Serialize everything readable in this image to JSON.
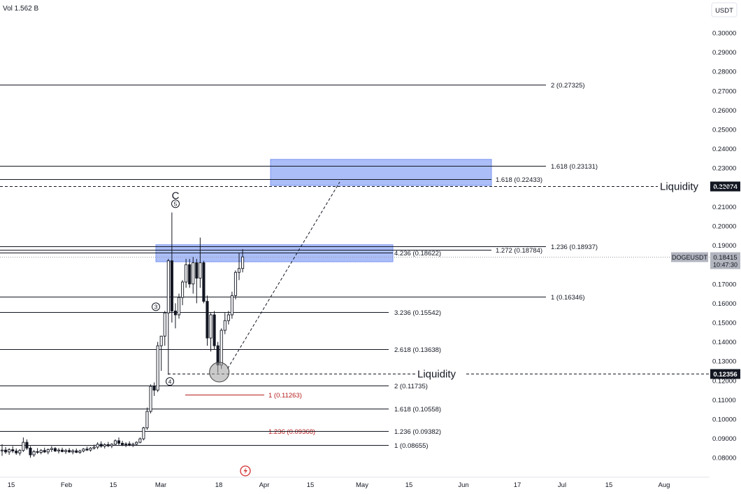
{
  "chart_data": {
    "type": "candlestick",
    "symbol": "DOGEUSDT",
    "volume_label": "Vol 1.562 B",
    "currency_label": "USDT",
    "x_ticks": [
      "15",
      "Feb",
      "15",
      "Mar",
      "18",
      "Apr",
      "15",
      "May",
      "15",
      "Jun",
      "17",
      "Jul",
      "15",
      "Aug"
    ],
    "y_ticks": [
      "0.30000",
      "0.29000",
      "0.28000",
      "0.27000",
      "0.26000",
      "0.25000",
      "0.24000",
      "0.23000",
      "0.22000",
      "0.21000",
      "0.20000",
      "0.19000",
      "0.18000",
      "0.17000",
      "0.16000",
      "0.15000",
      "0.14000",
      "0.13000",
      "0.12000",
      "0.11000",
      "0.10000",
      "0.09000",
      "0.08000"
    ],
    "ylim": [
      0.075,
      0.305
    ],
    "price_tag": {
      "label": "DOGEUSDT",
      "value": "0.18415",
      "countdown": "10:47:30",
      "price": 0.18415
    },
    "liquidity_levels": [
      {
        "label": "Liquidity",
        "value": "0.22074",
        "price": 0.22074
      },
      {
        "label": "Liquidity",
        "value": "0.12356",
        "price": 0.12356
      }
    ],
    "fib_levels": [
      {
        "text": "2 (0.27325)",
        "price": 0.27325
      },
      {
        "text": "1.618 (0.23131)",
        "price": 0.23131
      },
      {
        "text": "1.618 (0.22433)",
        "price": 0.22433
      },
      {
        "text": "1.236 (0.18937)",
        "price": 0.18937
      },
      {
        "text": "1.272 (0.18784)",
        "price": 0.18784
      },
      {
        "text": "4.236 (0.18622)",
        "price": 0.18622
      },
      {
        "text": "1 (0.16346)",
        "price": 0.16346
      },
      {
        "text": "3.236 (0.15542)",
        "price": 0.15542
      },
      {
        "text": "2.618 (0.13638)",
        "price": 0.13638
      },
      {
        "text": "2 (0.11735)",
        "price": 0.11735
      },
      {
        "text": "1 (0.11263)",
        "price": 0.11263,
        "color": "#b71c1c"
      },
      {
        "text": "1.618 (0.10558)",
        "price": 0.10558
      },
      {
        "text": "1.236 (0.09368)",
        "price": 0.09368,
        "color": "#b71c1c"
      },
      {
        "text": "1.236 (0.09382)",
        "price": 0.09382
      },
      {
        "text": "1 (0.08655)",
        "price": 0.08655
      }
    ],
    "zones": [
      {
        "low": 0.221,
        "high": 0.2345,
        "color": "#8fa8f5"
      },
      {
        "low": 0.1815,
        "high": 0.1903,
        "color": "#8fa8f5"
      }
    ],
    "wave_labels": [
      "C",
      "5",
      "3",
      "4"
    ],
    "candles": [
      [
        0.0835,
        0.087,
        0.081,
        0.084
      ],
      [
        0.084,
        0.0855,
        0.082,
        0.083
      ],
      [
        0.083,
        0.085,
        0.0815,
        0.0842
      ],
      [
        0.0842,
        0.086,
        0.0825,
        0.0835
      ],
      [
        0.0835,
        0.0848,
        0.0815,
        0.0825
      ],
      [
        0.0825,
        0.0845,
        0.0812,
        0.0838
      ],
      [
        0.0838,
        0.0905,
        0.083,
        0.088
      ],
      [
        0.088,
        0.0895,
        0.084,
        0.085
      ],
      [
        0.085,
        0.086,
        0.08,
        0.0815
      ],
      [
        0.0815,
        0.084,
        0.0805,
        0.0832
      ],
      [
        0.0832,
        0.085,
        0.082,
        0.0828
      ],
      [
        0.0828,
        0.0845,
        0.0818,
        0.0838
      ],
      [
        0.0838,
        0.0852,
        0.0825,
        0.083
      ],
      [
        0.083,
        0.0848,
        0.0818,
        0.0842
      ],
      [
        0.0842,
        0.086,
        0.083,
        0.0848
      ],
      [
        0.0848,
        0.0855,
        0.083,
        0.0835
      ],
      [
        0.0835,
        0.085,
        0.0822,
        0.084
      ],
      [
        0.084,
        0.0852,
        0.0828,
        0.0832
      ],
      [
        0.0832,
        0.0846,
        0.082,
        0.0838
      ],
      [
        0.0838,
        0.085,
        0.0826,
        0.083
      ],
      [
        0.083,
        0.0845,
        0.0818,
        0.0836
      ],
      [
        0.0836,
        0.0848,
        0.0824,
        0.0828
      ],
      [
        0.0828,
        0.0842,
        0.082,
        0.0835
      ],
      [
        0.0835,
        0.085,
        0.0828,
        0.0845
      ],
      [
        0.0845,
        0.0858,
        0.0835,
        0.084
      ],
      [
        0.084,
        0.0855,
        0.0832,
        0.085
      ],
      [
        0.085,
        0.0868,
        0.0842,
        0.0855
      ],
      [
        0.0855,
        0.088,
        0.0845,
        0.087
      ],
      [
        0.087,
        0.0885,
        0.0852,
        0.086
      ],
      [
        0.086,
        0.0875,
        0.0848,
        0.0868
      ],
      [
        0.0868,
        0.0882,
        0.0855,
        0.0862
      ],
      [
        0.0862,
        0.0875,
        0.085,
        0.087
      ],
      [
        0.087,
        0.0895,
        0.0862,
        0.0888
      ],
      [
        0.0888,
        0.0905,
        0.0865,
        0.0875
      ],
      [
        0.0875,
        0.0888,
        0.086,
        0.0868
      ],
      [
        0.0868,
        0.088,
        0.0855,
        0.0872
      ],
      [
        0.0872,
        0.0885,
        0.086,
        0.0865
      ],
      [
        0.0865,
        0.0878,
        0.0855,
        0.087
      ],
      [
        0.087,
        0.0885,
        0.0862,
        0.088
      ],
      [
        0.088,
        0.0905,
        0.0875,
        0.0898
      ],
      [
        0.0898,
        0.096,
        0.089,
        0.0955
      ],
      [
        0.0955,
        0.106,
        0.0945,
        0.104
      ],
      [
        0.104,
        0.118,
        0.103,
        0.117
      ],
      [
        0.117,
        0.119,
        0.112,
        0.115
      ],
      [
        0.115,
        0.14,
        0.114,
        0.138
      ],
      [
        0.138,
        0.143,
        0.125,
        0.143
      ],
      [
        0.143,
        0.156,
        0.138,
        0.155
      ],
      [
        0.155,
        0.183,
        0.123,
        0.182
      ],
      [
        0.182,
        0.207,
        0.15,
        0.156
      ],
      [
        0.156,
        0.16,
        0.147,
        0.154
      ],
      [
        0.154,
        0.165,
        0.152,
        0.163
      ],
      [
        0.163,
        0.172,
        0.159,
        0.171
      ],
      [
        0.171,
        0.183,
        0.168,
        0.18
      ],
      [
        0.18,
        0.183,
        0.168,
        0.17
      ],
      [
        0.17,
        0.184,
        0.165,
        0.181
      ],
      [
        0.181,
        0.183,
        0.16,
        0.173
      ],
      [
        0.173,
        0.194,
        0.168,
        0.181
      ],
      [
        0.181,
        0.182,
        0.16,
        0.161
      ],
      [
        0.161,
        0.164,
        0.138,
        0.142
      ],
      [
        0.142,
        0.155,
        0.135,
        0.154
      ],
      [
        0.154,
        0.156,
        0.136,
        0.138
      ],
      [
        0.138,
        0.14,
        0.124,
        0.128
      ],
      [
        0.128,
        0.147,
        0.126,
        0.146
      ],
      [
        0.146,
        0.155,
        0.144,
        0.151
      ],
      [
        0.151,
        0.156,
        0.149,
        0.154
      ],
      [
        0.154,
        0.166,
        0.152,
        0.164
      ],
      [
        0.164,
        0.177,
        0.162,
        0.176
      ],
      [
        0.176,
        0.186,
        0.172,
        0.178
      ],
      [
        0.178,
        0.188,
        0.176,
        0.184
      ]
    ]
  }
}
